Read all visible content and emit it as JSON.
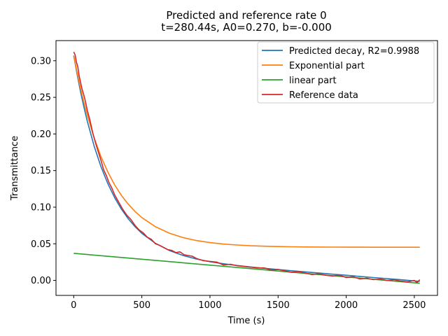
{
  "chart_data": {
    "type": "line",
    "title": "Predicted and reference rate 0",
    "subtitle": "t=280.44s, A0=0.270, b=-0.000",
    "xlabel": "Time (s)",
    "ylabel": "Transmittance",
    "xlim": [
      -130,
      2670
    ],
    "ylim": [
      -0.0205,
      0.3275
    ],
    "xticks": [
      0,
      500,
      1000,
      1500,
      2000,
      2500
    ],
    "xtick_labels": [
      "0",
      "500",
      "1000",
      "1500",
      "2000",
      "2500"
    ],
    "yticks": [
      0.0,
      0.05,
      0.1,
      0.15,
      0.2,
      0.25,
      0.3
    ],
    "ytick_labels": [
      "0.00",
      "0.05",
      "0.10",
      "0.15",
      "0.20",
      "0.25",
      "0.30"
    ],
    "grid": false,
    "legend_position": "top-right",
    "series": [
      {
        "name": "Predicted decay, R2=0.9988",
        "color": "#1f77b4",
        "x": [
          0,
          25,
          50,
          75,
          100,
          150,
          200,
          250,
          300,
          350,
          400,
          450,
          500,
          600,
          700,
          800,
          900,
          1000,
          1100,
          1200,
          1300,
          1400,
          1500,
          1600,
          1700,
          1800,
          1900,
          2000,
          2100,
          2200,
          2300,
          2400,
          2500,
          2540
        ],
        "y": [
          0.307,
          0.2813,
          0.2579,
          0.2366,
          0.2172,
          0.1834,
          0.1554,
          0.1323,
          0.1132,
          0.0974,
          0.0842,
          0.0734,
          0.0643,
          0.0506,
          0.041,
          0.0342,
          0.0292,
          0.0255,
          0.0227,
          0.0203,
          0.0183,
          0.0165,
          0.0148,
          0.0132,
          0.0116,
          0.01,
          0.0085,
          0.007,
          0.0054,
          0.0039,
          0.0024,
          0.0009,
          -0.0007,
          -0.0013
        ]
      },
      {
        "name": "Exponential part",
        "color": "#ff7f0e",
        "x": [
          0,
          25,
          50,
          75,
          100,
          150,
          200,
          250,
          300,
          350,
          400,
          450,
          500,
          600,
          700,
          800,
          900,
          1000,
          1100,
          1200,
          1300,
          1400,
          1500,
          1600,
          1700,
          1800,
          1900,
          2000,
          2100,
          2200,
          2300,
          2400,
          2500,
          2540
        ],
        "y": [
          0.307,
          0.2836,
          0.2624,
          0.243,
          0.2253,
          0.1946,
          0.1692,
          0.1481,
          0.1306,
          0.1161,
          0.1041,
          0.0941,
          0.0858,
          0.0733,
          0.0646,
          0.0586,
          0.0545,
          0.0516,
          0.0496,
          0.0483,
          0.0473,
          0.0467,
          0.0462,
          0.0459,
          0.0457,
          0.0456,
          0.0455,
          0.0454,
          0.0454,
          0.0453,
          0.0453,
          0.0453,
          0.0453,
          0.0453
        ]
      },
      {
        "name": "linear part",
        "color": "#2ca02c",
        "x": [
          0,
          2540
        ],
        "y": [
          0.037,
          -0.004
        ]
      },
      {
        "name": "Reference data",
        "color": "#d62728",
        "x": [
          0,
          10,
          20,
          30,
          40,
          50,
          60,
          70,
          80,
          90,
          100,
          120,
          140,
          160,
          180,
          200,
          220,
          240,
          260,
          280,
          300,
          330,
          360,
          390,
          420,
          450,
          480,
          510,
          540,
          570,
          600,
          630,
          660,
          690,
          720,
          750,
          780,
          810,
          840,
          870,
          900,
          950,
          1000,
          1050,
          1100,
          1150,
          1200,
          1250,
          1300,
          1350,
          1400,
          1450,
          1500,
          1550,
          1600,
          1650,
          1700,
          1750,
          1800,
          1850,
          1900,
          1950,
          2000,
          2050,
          2100,
          2150,
          2200,
          2250,
          2300,
          2350,
          2400,
          2450,
          2500,
          2520,
          2540
        ],
        "y": [
          0.312,
          0.308,
          0.298,
          0.292,
          0.279,
          0.271,
          0.262,
          0.256,
          0.249,
          0.241,
          0.232,
          0.218,
          0.201,
          0.188,
          0.176,
          0.164,
          0.151,
          0.143,
          0.133,
          0.126,
          0.117,
          0.107,
          0.097,
          0.089,
          0.083,
          0.075,
          0.069,
          0.065,
          0.059,
          0.056,
          0.05,
          0.048,
          0.045,
          0.042,
          0.041,
          0.038,
          0.039,
          0.035,
          0.034,
          0.033,
          0.03,
          0.027,
          0.026,
          0.025,
          0.021,
          0.022,
          0.02,
          0.019,
          0.018,
          0.017,
          0.017,
          0.014,
          0.015,
          0.013,
          0.011,
          0.012,
          0.01,
          0.008,
          0.009,
          0.007,
          0.006,
          0.007,
          0.004,
          0.005,
          0.002,
          0.003,
          0.001,
          0.002,
          0.0,
          0.001,
          -0.001,
          -0.002,
          0.0,
          -0.003,
          0.001
        ]
      }
    ]
  }
}
